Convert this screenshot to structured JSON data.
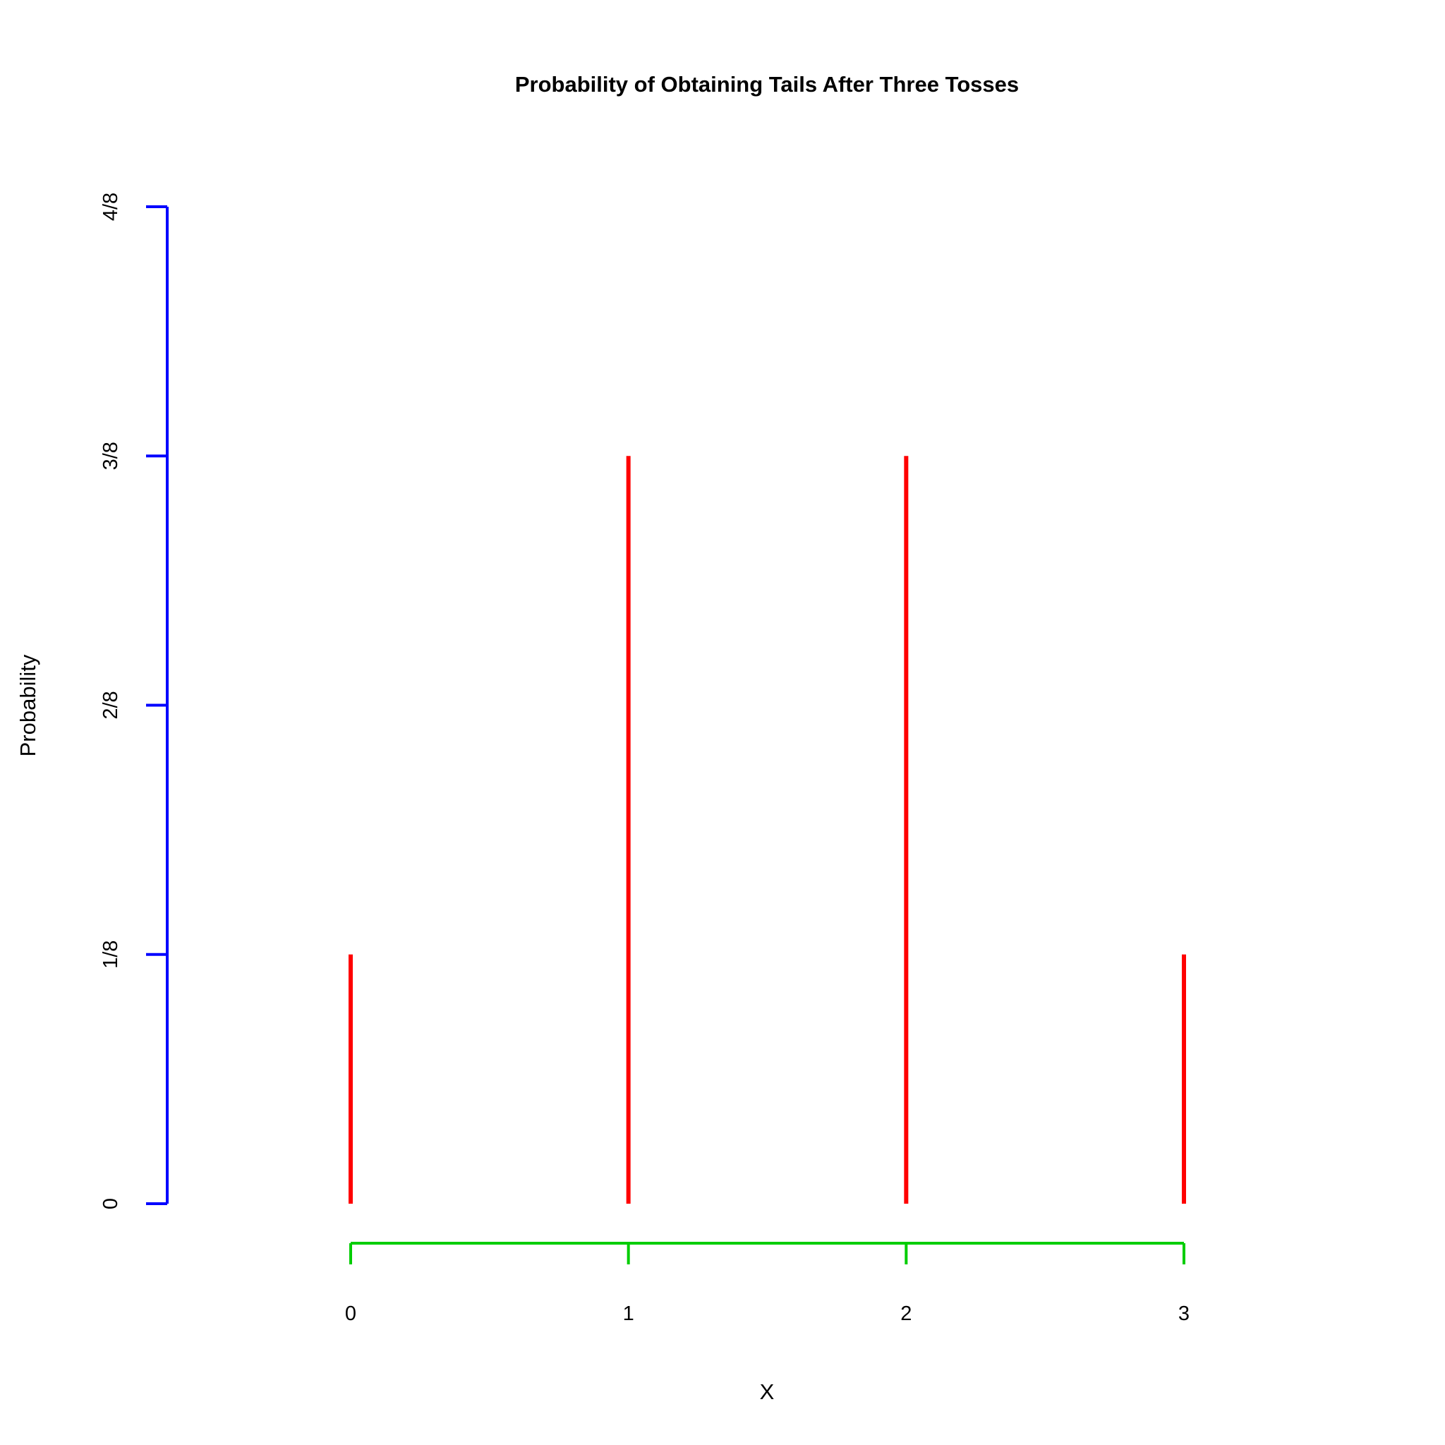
{
  "chart_data": {
    "type": "bar",
    "title": "Probability of Obtaining Tails After Three Tosses",
    "xlabel": "X",
    "ylabel": "Probability",
    "categories": [
      0,
      1,
      2,
      3
    ],
    "values": [
      0.125,
      0.375,
      0.375,
      0.125
    ],
    "x_tick_labels": [
      "0",
      "1",
      "2",
      "3"
    ],
    "y_ticks": [
      0,
      0.125,
      0.25,
      0.375,
      0.5
    ],
    "y_tick_labels": [
      "0",
      "1/8",
      "2/8",
      "3/8",
      "4/8"
    ],
    "xlim": [
      0,
      3
    ],
    "ylim": [
      0,
      0.5
    ],
    "grid": false,
    "colors": {
      "bars": "#ff0000",
      "y_axis": "#0000ff",
      "x_axis": "#00cd00"
    }
  }
}
